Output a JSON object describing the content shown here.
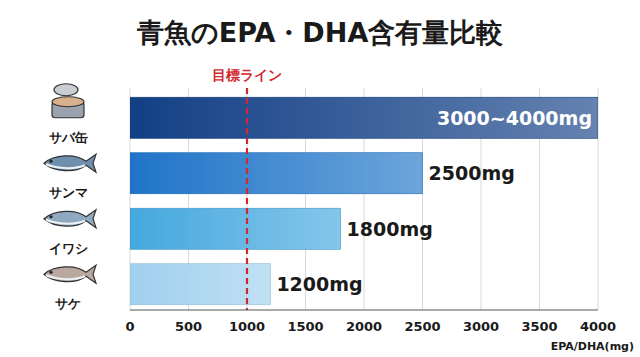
{
  "chart_data": {
    "type": "bar",
    "orientation": "horizontal",
    "title": "青魚のEPA・DHA含有量比較",
    "categories": [
      "サバ缶",
      "サンマ",
      "イワシ",
      "サケ"
    ],
    "values": [
      4000,
      2500,
      1800,
      1200
    ],
    "value_labels": [
      "3000~4000mg",
      "2500mg",
      "1800mg",
      "1200mg"
    ],
    "colors": [
      "#123f85",
      "#1f74c8",
      "#44a8de",
      "#9fd0ee"
    ],
    "xlabel": "EPA/DHA(mg)",
    "xlim": [
      0,
      4000
    ],
    "xticks": [
      0,
      500,
      1000,
      1500,
      2000,
      2500,
      3000,
      3500,
      4000
    ],
    "grid": true,
    "data_labels": true,
    "annotations": [
      {
        "text": "目標ライン",
        "x": 1000,
        "color": "#d0282c"
      }
    ]
  }
}
